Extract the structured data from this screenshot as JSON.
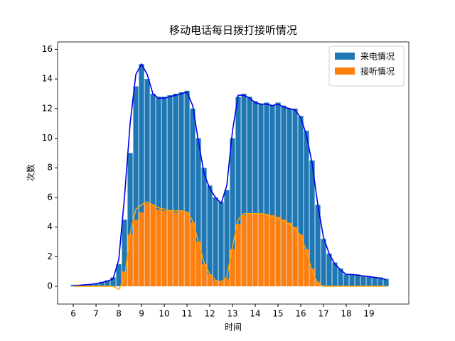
{
  "chart_data": {
    "type": "bar",
    "title": "移动电话每日拨打接听情况",
    "x_label": "时间",
    "y_label": "次数",
    "x": [
      6,
      6.25,
      6.5,
      6.75,
      7,
      7.25,
      7.5,
      7.75,
      8,
      8.25,
      8.5,
      8.75,
      9,
      9.25,
      9.5,
      9.75,
      10,
      10.25,
      10.5,
      10.75,
      11,
      11.25,
      11.5,
      11.75,
      12,
      12.25,
      12.5,
      12.75,
      13,
      13.25,
      13.5,
      13.75,
      14,
      14.25,
      14.5,
      14.75,
      15,
      15.25,
      15.5,
      15.75,
      16,
      16.25,
      16.5,
      16.75,
      17,
      17.25,
      17.5,
      17.75,
      18,
      18.25,
      18.5,
      18.75,
      19,
      19.25,
      19.5,
      19.75
    ],
    "series": [
      {
        "name": "来电情况",
        "color": "#1f77b4",
        "values": [
          0.1,
          0.1,
          0.1,
          0.15,
          0.2,
          0.3,
          0.4,
          0.6,
          1.5,
          4.5,
          9,
          13.5,
          15,
          14,
          13,
          12.8,
          12.8,
          12.9,
          13,
          13.1,
          13.2,
          12,
          10,
          8,
          6.8,
          6,
          5.7,
          6.5,
          10,
          12.8,
          13,
          12.8,
          12.5,
          12.3,
          12.4,
          12.2,
          12.4,
          12.2,
          12,
          12,
          11.5,
          10.5,
          8.5,
          5.5,
          3.2,
          2.2,
          1.6,
          1.2,
          0.8,
          0.8,
          0.8,
          0.7,
          0.7,
          0.6,
          0.6,
          0.5
        ]
      },
      {
        "name": "接听情况",
        "color": "#ff7f0e",
        "values": [
          0,
          0,
          0,
          0,
          0,
          0,
          0,
          0,
          0,
          1,
          3.5,
          4.5,
          5,
          5.6,
          5.5,
          5.2,
          5.1,
          5.1,
          5,
          5.1,
          5,
          4.3,
          3,
          1.5,
          0.8,
          0.4,
          0.3,
          0.5,
          2.5,
          4.2,
          4.8,
          4.9,
          4.9,
          4.9,
          4.9,
          4.8,
          4.7,
          4.5,
          4.3,
          4,
          3.5,
          2.5,
          1.2,
          0.3,
          0,
          0,
          0,
          0,
          0,
          0,
          0,
          0,
          0,
          0,
          0,
          0
        ]
      }
    ],
    "lines": [
      {
        "color": "#0000ee",
        "values": [
          0.05,
          0.07,
          0.1,
          0.12,
          0.18,
          0.25,
          0.35,
          0.5,
          1.8,
          6,
          11,
          14.3,
          15,
          14.3,
          13,
          12.7,
          12.7,
          12.8,
          12.9,
          13,
          13.1,
          12.2,
          9.8,
          7.6,
          6.6,
          6,
          5.6,
          6.8,
          10.5,
          12.9,
          12.9,
          12.7,
          12.4,
          12.3,
          12.3,
          12.2,
          12.3,
          12.1,
          12,
          11.9,
          11.4,
          10.2,
          8.3,
          5.5,
          3.3,
          2.2,
          1.5,
          1.1,
          0.8,
          0.8,
          0.75,
          0.7,
          0.65,
          0.6,
          0.55,
          0.45
        ]
      },
      {
        "color": "#ffa500",
        "values": [
          0,
          0,
          0,
          0,
          0,
          0,
          0,
          0,
          -0.2,
          0.5,
          3.5,
          5.2,
          5.5,
          5.7,
          5.5,
          5.3,
          5.2,
          5.1,
          5.1,
          5.1,
          5,
          4.4,
          3,
          1.6,
          0.8,
          0.4,
          0.3,
          0.6,
          2.7,
          4.5,
          4.9,
          4.9,
          4.9,
          4.9,
          4.8,
          4.7,
          4.6,
          4.4,
          4.2,
          3.9,
          3.4,
          2.4,
          1,
          0.2,
          0,
          0,
          0,
          0,
          0,
          0,
          0,
          0,
          0,
          0,
          0,
          0
        ]
      }
    ],
    "xlim": [
      5.31,
      20.75
    ],
    "ylim": [
      -1.2,
      16.5
    ],
    "xticks": [
      6,
      7,
      8,
      9,
      10,
      11,
      12,
      13,
      14,
      15,
      16,
      17,
      18,
      19
    ],
    "yticks": [
      0,
      2,
      4,
      6,
      8,
      10,
      12,
      14,
      16
    ],
    "legend": "upper right"
  }
}
